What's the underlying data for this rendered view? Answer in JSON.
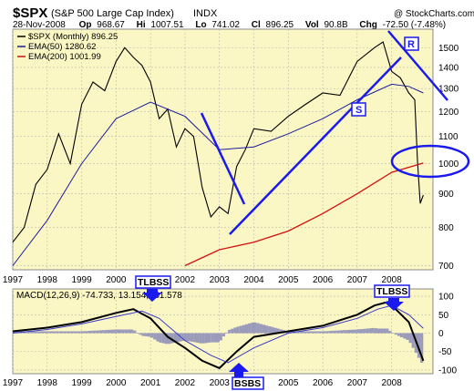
{
  "header": {
    "symbol": "$SPX",
    "name": "(S&P 500 Large Cap Index)",
    "exchange": "INDX",
    "watermark": "@ StockCharts.com",
    "date": "28-Nov-2008",
    "quote": {
      "op_label": "Op",
      "op": "968.67",
      "hi_label": "Hi",
      "hi": "1007.51",
      "lo_label": "Lo",
      "lo": "741.02",
      "cl_label": "Cl",
      "cl": "896.25",
      "vol_label": "Vol",
      "vol": "90.8B",
      "chg_label": "Chg",
      "chg": "-72.50 (-7.48%)"
    }
  },
  "colors": {
    "panel_bg": "#fbf7c4",
    "grid": "#b8b8b8",
    "price": "#000000",
    "ema50": "#1c1c9c",
    "ema200": "#d01010",
    "annot": "#1a1aee",
    "hist": "#9a9aba",
    "macd_signal": "#3a3ac8"
  },
  "annotations": {
    "label_r": "R",
    "label_s": "S",
    "tlbss_top": "TLBSS",
    "tlbss_left": "TLBSS",
    "bsbs": "BSBS"
  },
  "chart_data": [
    {
      "type": "line",
      "title": "$SPX (S&P 500 Large Cap Index) INDX",
      "legend": [
        {
          "name": "$SPX (Monthly)",
          "value": "896.25",
          "color": "#000000"
        },
        {
          "name": "EMA(50)",
          "value": "1280.62",
          "color": "#1c1c9c"
        },
        {
          "name": "EMA(200)",
          "value": "1001.99",
          "color": "#d01010"
        }
      ],
      "legend_position": "top-left",
      "y_scale": "log",
      "ylim": [
        690,
        1600
      ],
      "xlim": [
        1997.0,
        2009.2
      ],
      "y_ticks": [
        700,
        800,
        900,
        1000,
        1100,
        1200,
        1300,
        1400,
        1500
      ],
      "x_ticks": [
        {
          "label": "1997",
          "x": 1997
        },
        {
          "label": "1998",
          "x": 1998
        },
        {
          "label": "1999",
          "x": 1999
        },
        {
          "label": "2000",
          "x": 2000
        },
        {
          "label": "2001",
          "x": 2001
        },
        {
          "label": "2002",
          "x": 2002
        },
        {
          "label": "2003",
          "x": 2003
        },
        {
          "label": "2004",
          "x": 2004
        },
        {
          "label": "2005",
          "x": 2005
        },
        {
          "label": "2006",
          "x": 2006
        },
        {
          "label": "2007",
          "x": 2007
        },
        {
          "label": "2008",
          "x": 2008
        }
      ],
      "grid": true,
      "series": [
        {
          "name": "$SPX (Monthly)",
          "x": [
            1997.0,
            1997.33,
            1997.67,
            1998.0,
            1998.33,
            1998.67,
            1999.0,
            1999.33,
            1999.67,
            2000.0,
            2000.25,
            2000.5,
            2000.75,
            2001.0,
            2001.25,
            2001.5,
            2001.75,
            2002.0,
            2002.25,
            2002.5,
            2002.75,
            2003.0,
            2003.25,
            2003.5,
            2003.75,
            2004.0,
            2004.5,
            2005.0,
            2005.5,
            2006.0,
            2006.5,
            2007.0,
            2007.5,
            2007.75,
            2008.0,
            2008.25,
            2008.5,
            2008.67,
            2008.75,
            2008.83,
            2008.92
          ],
          "y": [
            760,
            800,
            930,
            980,
            1110,
            1000,
            1230,
            1330,
            1290,
            1430,
            1500,
            1450,
            1410,
            1330,
            1170,
            1210,
            1060,
            1130,
            1100,
            920,
            830,
            860,
            840,
            990,
            1050,
            1130,
            1120,
            1180,
            1230,
            1280,
            1270,
            1430,
            1500,
            1530,
            1380,
            1350,
            1280,
            1250,
            1010,
            870,
            896
          ]
        },
        {
          "name": "EMA(50)",
          "x": [
            1997.0,
            1998.0,
            1999.0,
            2000.0,
            2001.0,
            2002.0,
            2003.0,
            2004.0,
            2005.0,
            2006.0,
            2007.0,
            2008.0,
            2008.5,
            2008.92
          ],
          "y": [
            700,
            820,
            1000,
            1170,
            1240,
            1180,
            1050,
            1060,
            1110,
            1170,
            1250,
            1320,
            1310,
            1280
          ]
        },
        {
          "name": "EMA(200)",
          "x": [
            2002.0,
            2003.0,
            2004.0,
            2005.0,
            2006.0,
            2007.0,
            2008.0,
            2008.92
          ],
          "y": [
            700,
            740,
            760,
            790,
            840,
            900,
            970,
            1002
          ]
        }
      ]
    },
    {
      "type": "line",
      "legend": [
        {
          "name": "MACD(12,26,9)",
          "value": "-74.733, 13.154, -61.578"
        }
      ],
      "ylim": [
        -110,
        120
      ],
      "y_ticks": [
        -100,
        -50,
        0,
        50,
        100
      ],
      "x_ticks": [
        "1997",
        "1998",
        "1999",
        "2000",
        "2001",
        "2002",
        "2003",
        "2004",
        "2005",
        "2006",
        "2007",
        "2008"
      ],
      "grid": true,
      "series": [
        {
          "name": "MACD",
          "x": [
            1997.0,
            1998.0,
            1999.0,
            2000.0,
            2000.5,
            2001.0,
            2001.5,
            2002.0,
            2002.5,
            2003.0,
            2003.5,
            2004.0,
            2005.0,
            2006.0,
            2007.0,
            2007.5,
            2007.9,
            2008.5,
            2008.92
          ],
          "y": [
            5,
            15,
            30,
            55,
            65,
            40,
            -10,
            -40,
            -75,
            -95,
            -50,
            -10,
            5,
            20,
            50,
            75,
            85,
            30,
            -75
          ]
        },
        {
          "name": "Signal",
          "x": [
            1997.0,
            1998.0,
            1999.0,
            2000.0,
            2000.75,
            2001.25,
            2002.0,
            2002.75,
            2003.25,
            2004.0,
            2005.0,
            2006.0,
            2007.0,
            2007.6,
            2008.0,
            2008.5,
            2008.92
          ],
          "y": [
            0,
            10,
            25,
            45,
            60,
            40,
            -20,
            -60,
            -80,
            -40,
            0,
            15,
            40,
            65,
            75,
            50,
            13
          ]
        }
      ]
    }
  ]
}
